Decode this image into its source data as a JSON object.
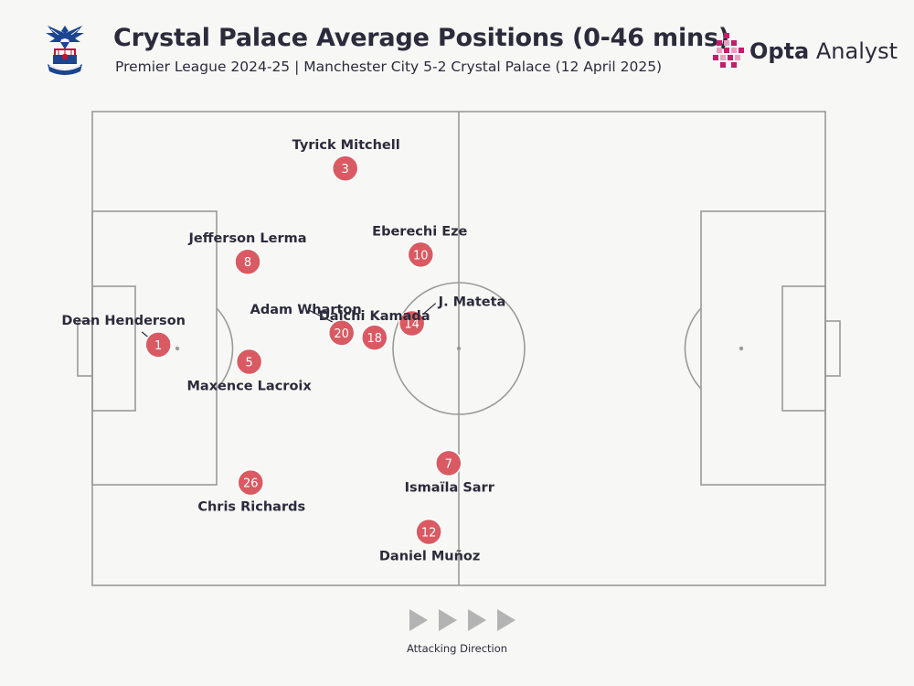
{
  "header": {
    "title": "Crystal Palace Average Positions (0-46 mins)",
    "subtitle": "Premier League 2024-25 | Manchester City 5-2 Crystal Palace (12 April 2025)"
  },
  "brand": {
    "name_bold": "Opta",
    "name_rest": " Analyst"
  },
  "footer": {
    "direction_label": "Attacking Direction"
  },
  "colors": {
    "marker": "#d95a62",
    "pitch_lines": "#9a9a9a",
    "text": "#2c2b3c",
    "background": "#f7f7f5",
    "brand_accent": "#c51d6b",
    "arrow": "#b3b3b3"
  },
  "icons": {
    "crest": "crystal-palace-eagle-crest",
    "brand_mark": "opta-pixel-mark",
    "direction": "play-triangle-arrows"
  },
  "chart_data": {
    "type": "scatter",
    "title": "Crystal Palace Average Positions (0-46 mins)",
    "subtitle": "Premier League 2024-25 | Manchester City 5-2 Crystal Palace (12 April 2025)",
    "xlim": [
      0,
      100
    ],
    "ylim": [
      0,
      100
    ],
    "grid": false,
    "legend": "none",
    "points": [
      {
        "number": "1",
        "name": "Dean Henderson",
        "x": 9.0,
        "y": 50.8
      },
      {
        "number": "3",
        "name": "Tyrick Mitchell",
        "x": 34.5,
        "y": 88.0
      },
      {
        "number": "8",
        "name": "Jefferson Lerma",
        "x": 21.2,
        "y": 68.3
      },
      {
        "number": "10",
        "name": "Eberechi Eze",
        "x": 44.8,
        "y": 69.8
      },
      {
        "number": "5",
        "name": "Maxence Lacroix",
        "x": 21.4,
        "y": 47.2
      },
      {
        "number": "20",
        "name": "Adam Wharton",
        "x": 34.0,
        "y": 53.3
      },
      {
        "number": "18",
        "name": "Daichi Kamada",
        "x": 38.5,
        "y": 52.3
      },
      {
        "number": "14",
        "name": "J. Mateta",
        "x": 43.6,
        "y": 55.3
      },
      {
        "number": "26",
        "name": "Chris Richards",
        "x": 21.6,
        "y": 21.7
      },
      {
        "number": "7",
        "name": "Ismaïla Sarr",
        "x": 48.6,
        "y": 25.8
      },
      {
        "number": "12",
        "name": "Daniel Muñoz",
        "x": 45.9,
        "y": 11.3
      }
    ]
  }
}
